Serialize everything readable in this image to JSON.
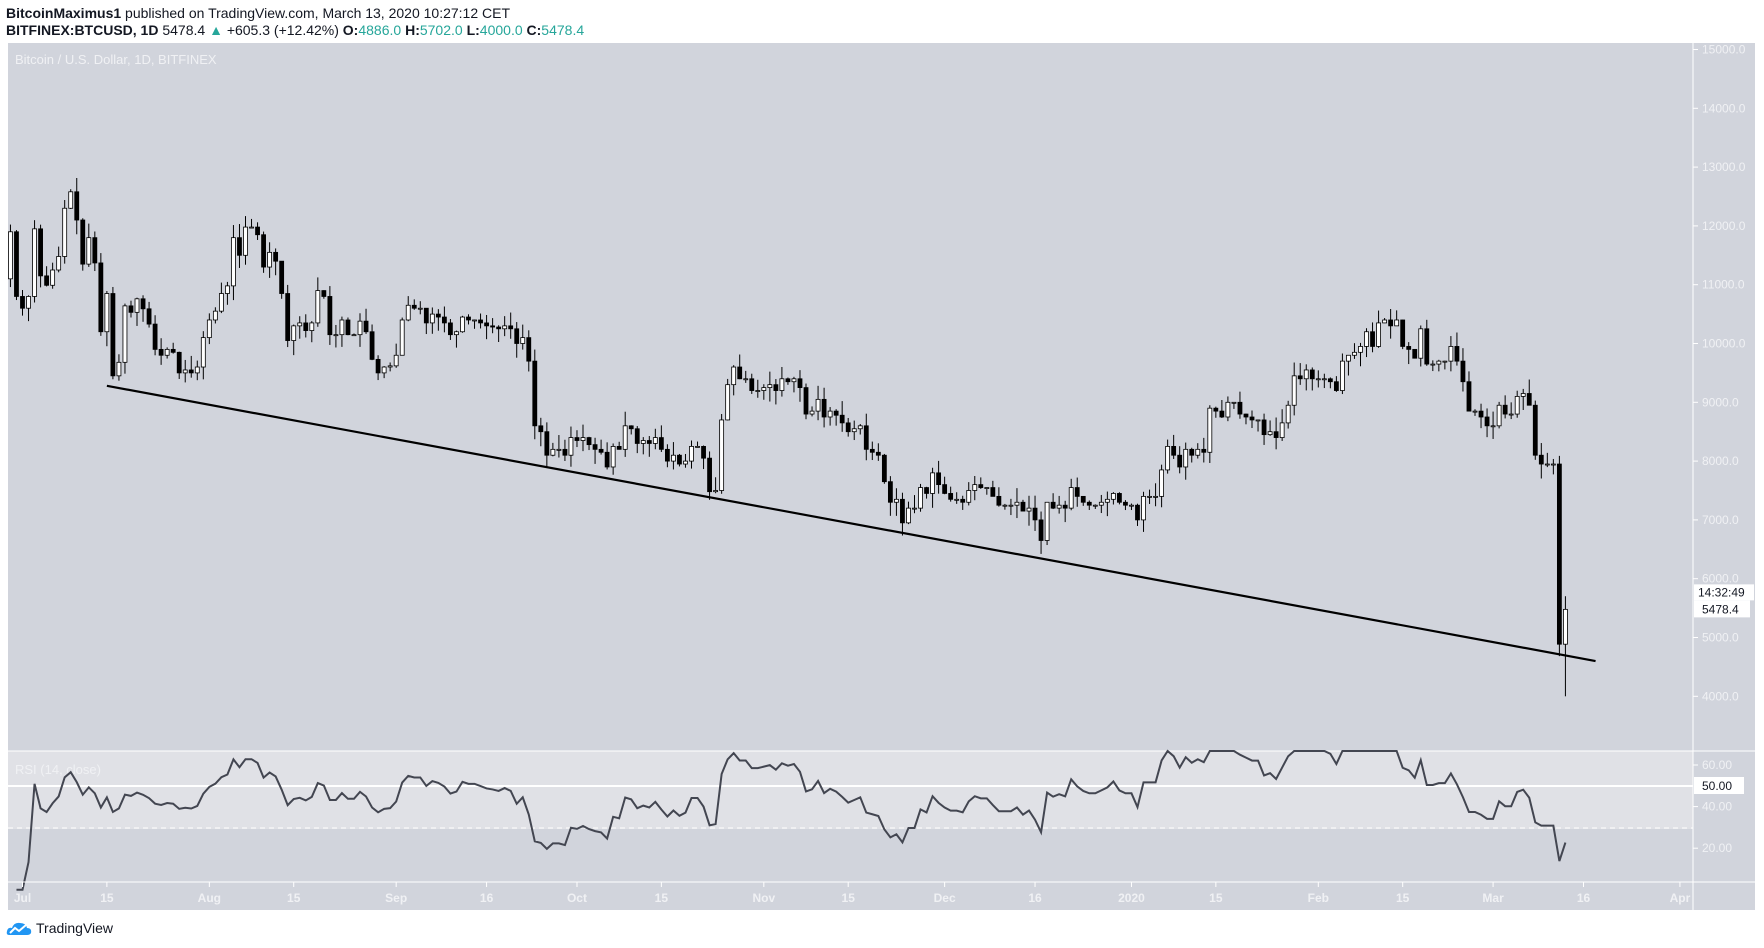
{
  "header": {
    "author": "BitcoinMaximus1",
    "published": "published on TradingView.com, March 13, 2020 10:27:12 CET",
    "symbol": "BITFINEX:BTCUSD, 1D",
    "last": "5478.4",
    "change": "+605.3 (+12.42%)",
    "o_label": "O:",
    "o": "4886.0",
    "h_label": "H:",
    "h": "5702.0",
    "l_label": "L:",
    "l": "4000.0",
    "c_label": "C:",
    "c": "5478.4",
    "up_icon": "triangle-up-icon"
  },
  "footer": {
    "brand": "TradingView",
    "logo_icon": "tradingview-cloud-icon"
  },
  "colors": {
    "background": "#d1d4dc",
    "up": "#ffffff",
    "down": "#000000",
    "rsi_line": "#434651",
    "accent": "#26a69a",
    "logo": "#2196f3"
  },
  "chart_data": [
    {
      "type": "candlestick",
      "title": "Bitcoin / U.S. Dollar, 1D, BITFINEX",
      "start_date": "2019-06-29",
      "open_first": 11100,
      "close": [
        11900,
        10800,
        10600,
        10800,
        11950,
        11150,
        10990,
        11250,
        11480,
        12300,
        12580,
        12100,
        11350,
        11800,
        11370,
        10200,
        10850,
        9450,
        9680,
        10640,
        10530,
        10760,
        10590,
        10330,
        9900,
        9800,
        9900,
        9850,
        9500,
        9550,
        9500,
        9600,
        10100,
        10400,
        10550,
        10850,
        10980,
        11800,
        11500,
        11980,
        11980,
        11850,
        11300,
        11550,
        11400,
        10850,
        10050,
        10300,
        10350,
        10220,
        10350,
        10900,
        10800,
        10150,
        10150,
        10400,
        10150,
        10150,
        10380,
        10200,
        9730,
        9500,
        9600,
        9620,
        9800,
        10400,
        10650,
        10600,
        10600,
        10350,
        10500,
        10450,
        10350,
        10150,
        10200,
        10450,
        10400,
        10400,
        10350,
        10300,
        10280,
        10250,
        10300,
        10250,
        10000,
        10100,
        9700,
        8600,
        8500,
        8100,
        8200,
        8200,
        8100,
        8400,
        8350,
        8400,
        8280,
        8200,
        8150,
        7900,
        8250,
        8200,
        8600,
        8550,
        8300,
        8350,
        8300,
        8400,
        8200,
        8000,
        8100,
        7950,
        8000,
        8250,
        8250,
        8050,
        7480,
        7500,
        8700,
        9300,
        9600,
        9400,
        9400,
        9200,
        9200,
        9250,
        9300,
        9200,
        9400,
        9350,
        9400,
        9250,
        8800,
        8850,
        9050,
        8750,
        8850,
        8780,
        8650,
        8500,
        8550,
        8600,
        8200,
        8150,
        8100,
        7650,
        7300,
        7350,
        6950,
        7200,
        7200,
        7550,
        7450,
        7800,
        7600,
        7450,
        7350,
        7350,
        7300,
        7500,
        7600,
        7550,
        7550,
        7400,
        7250,
        7250,
        7250,
        7300,
        7150,
        7200,
        7000,
        6650,
        7300,
        7200,
        7250,
        7200,
        7550,
        7400,
        7300,
        7250,
        7250,
        7300,
        7350,
        7450,
        7300,
        7250,
        7250,
        7000,
        7400,
        7400,
        7400,
        7850,
        8250,
        8100,
        7900,
        8200,
        8100,
        8200,
        8150,
        8900,
        8850,
        8750,
        9000,
        9000,
        8800,
        8750,
        8700,
        8700,
        8450,
        8500,
        8400,
        8650,
        8950,
        9450,
        9400,
        9550,
        9400,
        9400,
        9400,
        9350,
        9200,
        9700,
        9800,
        9850,
        9950,
        10200,
        9950,
        10350,
        10400,
        10300,
        10400,
        9950,
        9900,
        9750,
        10250,
        9650,
        9650,
        9700,
        9700,
        9950,
        9700,
        9350,
        8850,
        8850,
        8750,
        8600,
        8600,
        8950,
        8800,
        8800,
        9100,
        9150,
        8950,
        8100,
        7950,
        7950,
        7950,
        4886,
        5478.4
      ],
      "last_candle": {
        "date": "2020-03-13",
        "open": 4886.0,
        "high": 5702.0,
        "low": 4000.0,
        "close": 5478.4
      },
      "price_axis": {
        "ticks": [
          "4000.0",
          "5000.0",
          "6000.0",
          "7000.0",
          "8000.0",
          "9000.0",
          "10000.0",
          "11000.0",
          "12000.0",
          "13000.0",
          "14000.0",
          "15000.0"
        ],
        "range": [
          3600,
          15100
        ]
      },
      "price_label": "5478.4",
      "countdown_label": "14:32:49",
      "trendline": {
        "from": {
          "date": "2019-07-15",
          "price": 9280
        },
        "to": {
          "date": "2020-03-18",
          "price": 4600
        }
      },
      "time_axis": {
        "ticks": [
          {
            "date": "2019-07-01",
            "label": "Jul"
          },
          {
            "date": "2019-07-15",
            "label": "15"
          },
          {
            "date": "2019-08-01",
            "label": "Aug"
          },
          {
            "date": "2019-08-15",
            "label": "15"
          },
          {
            "date": "2019-09-01",
            "label": "Sep"
          },
          {
            "date": "2019-09-16",
            "label": "16"
          },
          {
            "date": "2019-10-01",
            "label": "Oct"
          },
          {
            "date": "2019-10-15",
            "label": "15"
          },
          {
            "date": "2019-11-01",
            "label": "Nov"
          },
          {
            "date": "2019-11-15",
            "label": "15"
          },
          {
            "date": "2019-12-01",
            "label": "Dec"
          },
          {
            "date": "2019-12-16",
            "label": "16"
          },
          {
            "date": "2020-01-01",
            "label": "2020"
          },
          {
            "date": "2020-01-15",
            "label": "15"
          },
          {
            "date": "2020-02-01",
            "label": "Feb"
          },
          {
            "date": "2020-02-15",
            "label": "15"
          },
          {
            "date": "2020-03-01",
            "label": "Mar"
          },
          {
            "date": "2020-03-16",
            "label": "16"
          },
          {
            "date": "2020-04-01",
            "label": "Apr"
          }
        ]
      },
      "grid": false
    },
    {
      "type": "line",
      "title": "RSI (14, close)",
      "period": 14,
      "y_ticks": [
        "20.00",
        "40.00",
        "60.00"
      ],
      "level_label": "50.00",
      "levels": [
        50,
        30
      ],
      "range": [
        4,
        67
      ]
    }
  ]
}
